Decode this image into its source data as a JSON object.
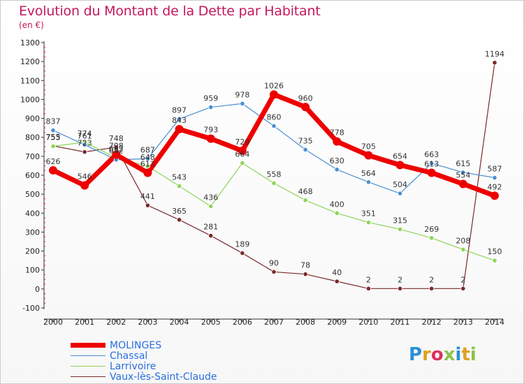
{
  "title": "Evolution du Montant de la Dette par Habitant",
  "subtitle": "(en €)",
  "logo_text": "Proxiti",
  "chart_data": {
    "type": "line",
    "categories": [
      "2000",
      "2001",
      "2002",
      "2003",
      "2004",
      "2005",
      "2006",
      "2007",
      "2008",
      "2009",
      "2010",
      "2011",
      "2012",
      "2013",
      "2014"
    ],
    "ylim": [
      -100,
      1300
    ],
    "yticks": [
      -100,
      0,
      100,
      200,
      300,
      400,
      500,
      600,
      700,
      800,
      900,
      1000,
      1100,
      1200,
      1300
    ],
    "grid": false,
    "legend_position": "bottom-left",
    "series": [
      {
        "name": "MOLINGES",
        "color": "#ee0000",
        "values": [
          626,
          546,
          708,
          613,
          843,
          793,
          729,
          1026,
          960,
          778,
          705,
          654,
          613,
          554,
          492
        ]
      },
      {
        "name": "Chassal",
        "color": "#4a8fd1",
        "values": [
          837,
          761,
          682,
          687,
          897,
          959,
          978,
          860,
          735,
          630,
          564,
          504,
          663,
          615,
          587
        ]
      },
      {
        "name": "Larrivoire",
        "color": "#8fd45a",
        "values": [
          753,
          774,
          692,
          648,
          543,
          436,
          664,
          558,
          468,
          400,
          351,
          315,
          269,
          208,
          150
        ]
      },
      {
        "name": "Vaux-lès-Saint-Claude",
        "color": "#7a2a2a",
        "values": [
          755,
          723,
          748,
          441,
          365,
          281,
          189,
          90,
          78,
          40,
          2,
          2,
          2,
          2,
          1194
        ]
      }
    ]
  }
}
